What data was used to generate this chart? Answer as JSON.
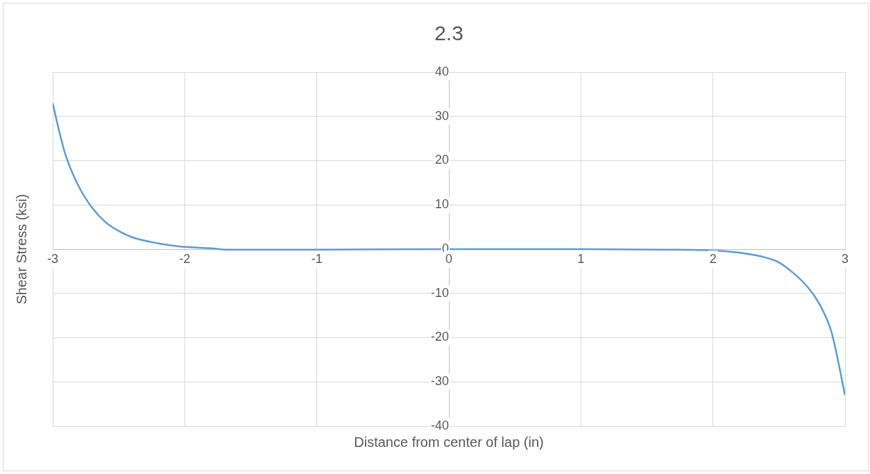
{
  "chart_data": {
    "type": "line",
    "title": "2.3",
    "xlabel": "Distance from center of lap (in)",
    "ylabel": "Shear Stress (ksi)",
    "xlim": [
      -3,
      3
    ],
    "xticks": [
      -3,
      -2,
      -1,
      0,
      1,
      2,
      3
    ],
    "ylim": [
      -40,
      40
    ],
    "yticks": [
      -40,
      -30,
      -20,
      -10,
      0,
      10,
      20,
      30,
      40
    ],
    "grid": true,
    "marker": "none",
    "legend": false,
    "series": [
      {
        "color": "#5b9bd5",
        "x": [
          -3,
          -2.95,
          -2.9,
          -2.8,
          -2.7,
          -2.6,
          -2.5,
          -2.4,
          -2.2,
          -2,
          -1.8,
          -1.7,
          -1,
          0,
          1,
          1.6,
          2,
          2.2,
          2.4,
          2.5,
          2.6,
          2.7,
          2.78,
          2.85,
          2.9,
          3
        ],
        "values": [
          33,
          26.5,
          21,
          14,
          9.3,
          6.1,
          4.1,
          2.7,
          1.3,
          0.5,
          0.2,
          -0.1,
          -0.1,
          0,
          0,
          -0.1,
          -0.3,
          -0.8,
          -1.9,
          -3,
          -5.2,
          -8,
          -11.1,
          -15,
          -19,
          -33
        ]
      }
    ]
  }
}
